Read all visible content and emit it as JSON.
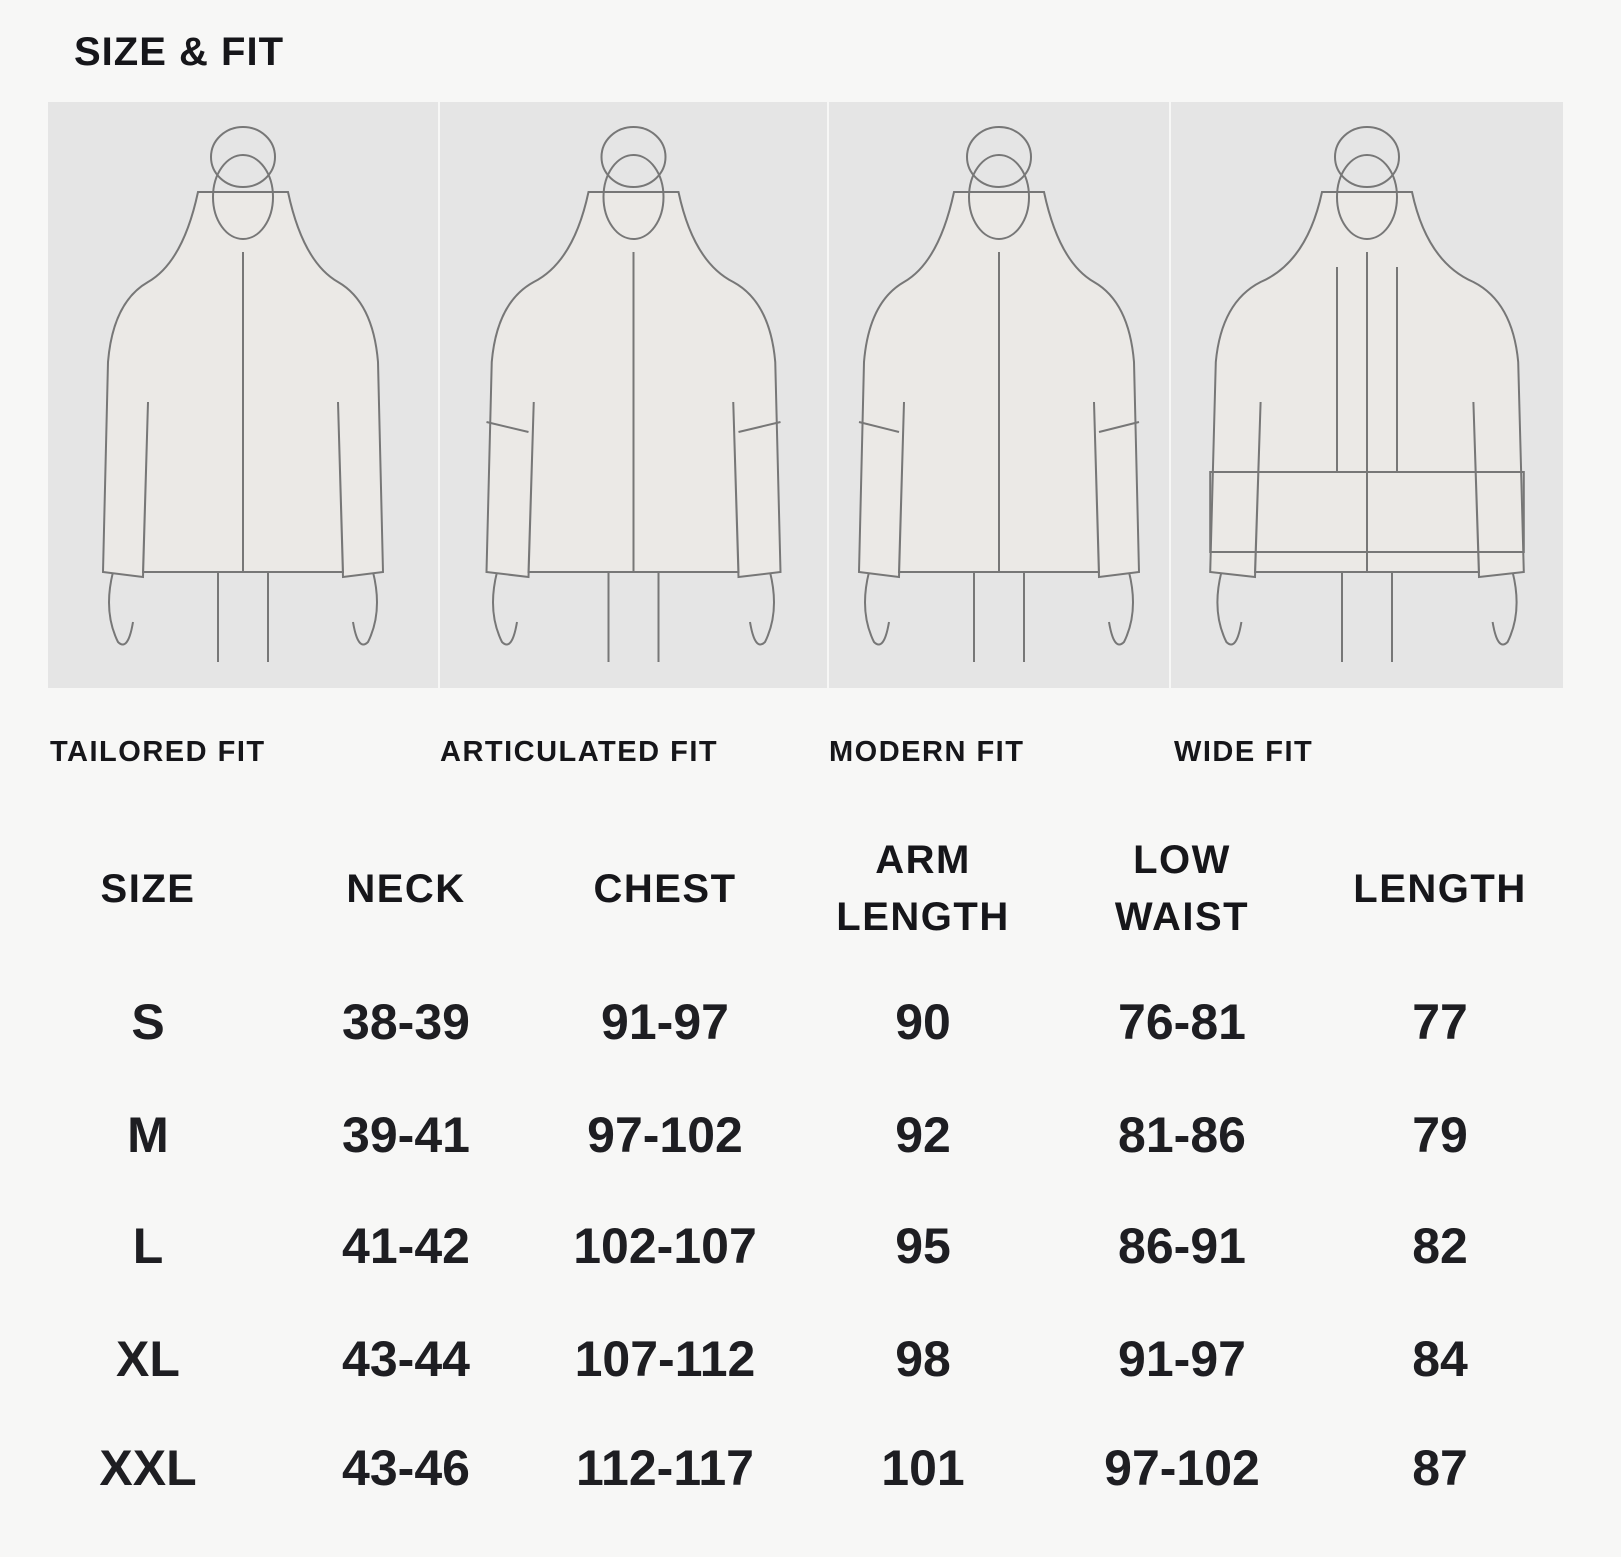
{
  "title": "SIZE & FIT",
  "fits": [
    {
      "label": "TAILORED FIT",
      "icon": "tailored-jacket-illustration"
    },
    {
      "label": "ARTICULATED FIT",
      "icon": "articulated-jacket-illustration"
    },
    {
      "label": "MODERN FIT",
      "icon": "modern-jacket-illustration"
    },
    {
      "label": "WIDE FIT",
      "icon": "wide-jacket-illustration"
    }
  ],
  "table": {
    "headers": [
      [
        "SIZE"
      ],
      [
        "NECK"
      ],
      [
        "CHEST"
      ],
      [
        "ARM",
        "LENGTH"
      ],
      [
        "LOW",
        "WAIST"
      ],
      [
        "LENGTH"
      ]
    ],
    "rows": [
      [
        "S",
        "38-39",
        "91-97",
        "90",
        "76-81",
        "77"
      ],
      [
        "M",
        "39-41",
        "97-102",
        "92",
        "81-86",
        "79"
      ],
      [
        "L",
        "41-42",
        "102-107",
        "95",
        "86-91",
        "82"
      ],
      [
        "XL",
        "43-44",
        "107-112",
        "98",
        "91-97",
        "84"
      ],
      [
        "XXL",
        "43-46",
        "112-117",
        "101",
        "97-102",
        "87"
      ]
    ]
  }
}
